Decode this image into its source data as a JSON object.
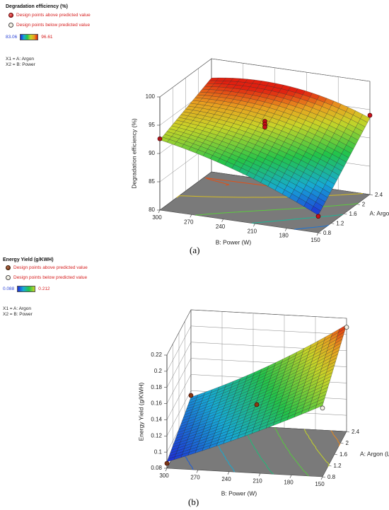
{
  "chart_data": [
    {
      "type": "surface3d",
      "panel_label": "(a)",
      "response_title": "Degradation efficiency (%)",
      "legend": {
        "above": "Design points above predicted value",
        "below": "Design points below predicted value",
        "color_min": "83.06",
        "color_max": "96.61"
      },
      "factors": [
        "X1 = A: Argon",
        "X2 = B: Power"
      ],
      "xlabel": "B: Power (W)",
      "ylabel": "A: Argon (L/min)",
      "zlabel": "Degradation efficiency (%)",
      "x_ticks": [
        "300",
        "270",
        "240",
        "210",
        "180",
        "150"
      ],
      "y_ticks": [
        "0.8",
        "1.2",
        "1.6",
        "2",
        "2.4"
      ],
      "z_ticks": [
        "80",
        "85",
        "90",
        "95",
        "100"
      ],
      "xlim": [
        150,
        300
      ],
      "ylim": [
        0.8,
        2.4
      ],
      "zlim": [
        80,
        100
      ],
      "surface_corners": {
        "power_300_argon_0.8": 92.4,
        "power_300_argon_2.4": 96.6,
        "power_150_argon_2.4": 93.5,
        "power_150_argon_0.8": 83.1
      },
      "design_points": [
        {
          "power": 300,
          "argon": 0.8,
          "value": 92.6,
          "type": "above"
        },
        {
          "power": 225,
          "argon": 1.6,
          "value": 94.3,
          "type": "above"
        },
        {
          "power": 225,
          "argon": 1.6,
          "value": 93.8,
          "type": "above"
        },
        {
          "power": 225,
          "argon": 1.6,
          "value": 93.3,
          "type": "above"
        },
        {
          "power": 150,
          "argon": 2.4,
          "value": 94.0,
          "type": "above"
        },
        {
          "power": 150,
          "argon": 0.8,
          "value": 82.9,
          "type": "above"
        }
      ]
    },
    {
      "type": "surface3d",
      "panel_label": "(b)",
      "response_title": "Energy Yield (g/KWH)",
      "legend": {
        "above": "Design points above predicted value",
        "below": "Design points below predicted value",
        "color_min": "0.088",
        "color_max": "0.212"
      },
      "factors": [
        "X1 = A: Argon",
        "X2 = B: Power"
      ],
      "xlabel": "B: Power (W)",
      "ylabel": "A: Argon (L/min)",
      "zlabel": "Energy Yield (g/KWH)",
      "x_ticks": [
        "300",
        "270",
        "240",
        "210",
        "180",
        "150"
      ],
      "y_ticks": [
        "0.8",
        "1.2",
        "1.6",
        "2",
        "2.4"
      ],
      "z_ticks": [
        "0.08",
        "0.1",
        "0.12",
        "0.14",
        "0.16",
        "0.18",
        "0.2",
        "0.22"
      ],
      "xlim": [
        150,
        300
      ],
      "ylim": [
        0.8,
        2.4
      ],
      "zlim": [
        0.08,
        0.22
      ],
      "surface_corners": {
        "power_300_argon_0.8": 0.088,
        "power_300_argon_2.4": 0.112,
        "power_150_argon_2.4": 0.212,
        "power_150_argon_0.8": 0.168
      },
      "design_points": [
        {
          "power": 300,
          "argon": 0.8,
          "value": 0.086,
          "type": "above"
        },
        {
          "power": 300,
          "argon": 2.4,
          "value": 0.114,
          "type": "above"
        },
        {
          "power": 225,
          "argon": 1.6,
          "value": 0.136,
          "type": "above"
        },
        {
          "power": 150,
          "argon": 2.4,
          "value": 0.209,
          "type": "below"
        },
        {
          "power": 150,
          "argon": 0.8,
          "value": 0.165,
          "type": "below"
        }
      ]
    }
  ]
}
